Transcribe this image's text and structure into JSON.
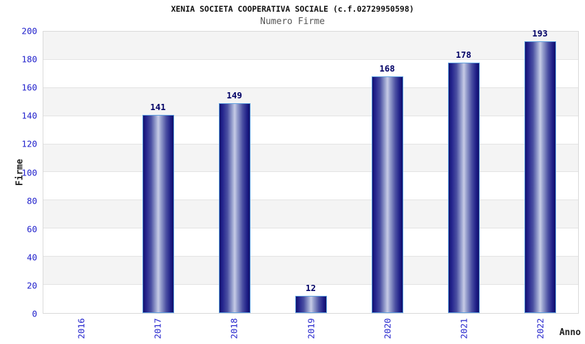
{
  "chart_data": {
    "type": "bar",
    "title": "XENIA SOCIETA COOPERATIVA SOCIALE (c.f.02729950598)",
    "subtitle": "Numero Firme",
    "xlabel": "Anno",
    "ylabel": "Firme",
    "categories": [
      "2016",
      "2017",
      "2018",
      "2019",
      "2020",
      "2021",
      "2022"
    ],
    "values": [
      null,
      141,
      149,
      12,
      168,
      178,
      193
    ],
    "ylim": [
      0,
      200
    ],
    "ytick_step": 20,
    "grid": "horizontal-bands-alternating",
    "legend": "none",
    "colors": {
      "bar_dark": "#12126e",
      "bar_light": "#c7cce6",
      "bar_border": "#5ea0e0",
      "tick_label": "#2222cc",
      "value_label": "#000066",
      "band_gray": "#f4f4f4",
      "band_white": "#ffffff",
      "gridline": "#e3e3e3",
      "plot_border": "#d9d9d9",
      "title_color": "#111111",
      "subtitle_color": "#555555",
      "axis_title_color": "#222222"
    }
  }
}
